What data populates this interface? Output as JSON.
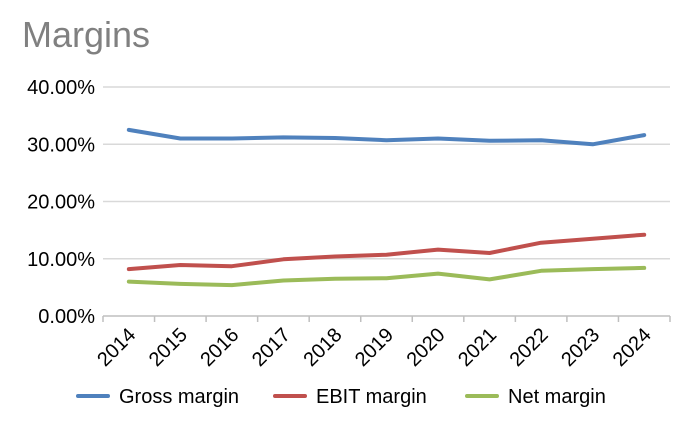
{
  "chart_data": {
    "type": "line",
    "title": "Margins",
    "categories": [
      "2014",
      "2015",
      "2016",
      "2017",
      "2018",
      "2019",
      "2020",
      "2021",
      "2022",
      "2023",
      "2024"
    ],
    "ylim": [
      0,
      0.4
    ],
    "yticks": [
      "0.00%",
      "10.00%",
      "20.00%",
      "30.00%",
      "40.00%"
    ],
    "ytick_values": [
      0,
      0.1,
      0.2,
      0.3,
      0.4
    ],
    "grid": "horizontal",
    "legend": "bottom",
    "series": [
      {
        "name": "Gross margin",
        "color": "#4f81bd",
        "values": [
          0.325,
          0.31,
          0.31,
          0.312,
          0.311,
          0.307,
          0.31,
          0.306,
          0.307,
          0.3,
          0.316
        ]
      },
      {
        "name": "EBIT margin",
        "color": "#c0504d",
        "values": [
          0.082,
          0.089,
          0.087,
          0.099,
          0.104,
          0.107,
          0.116,
          0.11,
          0.128,
          0.135,
          0.142
        ]
      },
      {
        "name": "Net margin",
        "color": "#9bbb59",
        "values": [
          0.06,
          0.056,
          0.054,
          0.062,
          0.065,
          0.066,
          0.074,
          0.064,
          0.079,
          0.082,
          0.084
        ]
      }
    ]
  }
}
